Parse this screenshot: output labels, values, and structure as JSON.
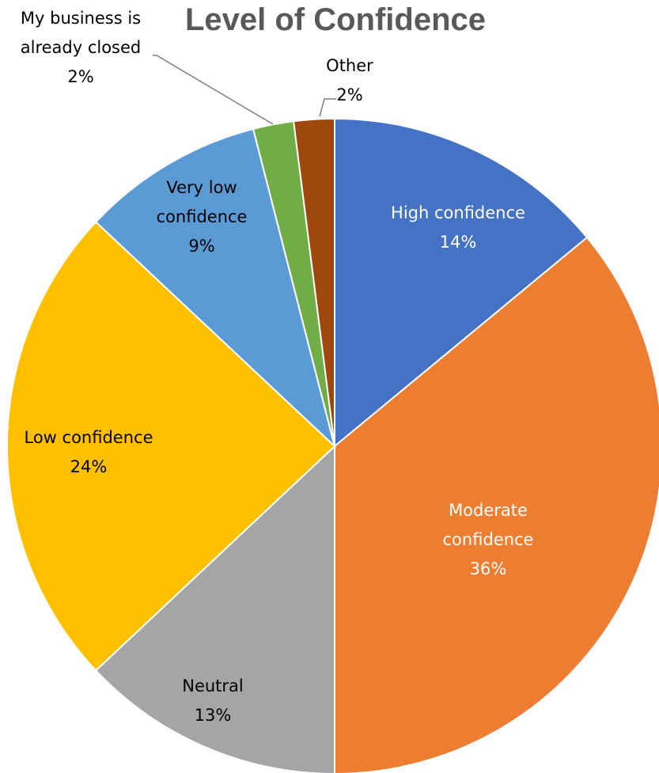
{
  "chart_data": {
    "type": "pie",
    "title": "Level of Confidence",
    "slices": [
      {
        "label": "High confidence",
        "value": 14,
        "display": "14%",
        "color": "#4472C4"
      },
      {
        "label": "Moderate confidence",
        "value": 36,
        "display": "36%",
        "color": "#ED7D31"
      },
      {
        "label": "Neutral",
        "value": 13,
        "display": "13%",
        "color": "#A5A5A5"
      },
      {
        "label": "Low confidence",
        "value": 24,
        "display": "24%",
        "color": "#FFC000"
      },
      {
        "label": "Very low confidence",
        "value": 9,
        "display": "9%",
        "color": "#5B9BD5"
      },
      {
        "label": "",
        "value": 0,
        "display": "0%",
        "color": "#264478"
      },
      {
        "label": "My business is already closed",
        "value": 2,
        "display": "2%",
        "color": "#70AD47"
      },
      {
        "label": "Other",
        "value": 2,
        "display": "2%",
        "color": "#9E480E"
      }
    ],
    "label_colors": {
      "inside": "#ffffff",
      "outside": "#000000"
    },
    "start_angle_deg": 0,
    "direction": "clockwise"
  }
}
